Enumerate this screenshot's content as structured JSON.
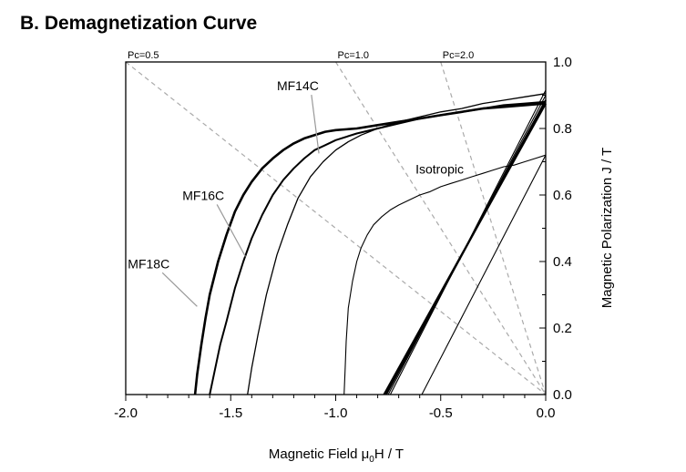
{
  "chart_data": {
    "type": "line",
    "title": "B. Demagnetization Curve",
    "xlabel_main": "Magnetic Field μ",
    "xlabel_sub": "0",
    "xlabel_tail": "H / T",
    "ylabel": "Magnetic Polarization J / T",
    "xlim": [
      -2.0,
      0.0
    ],
    "ylim": [
      0.0,
      1.0
    ],
    "x_ticks": [
      -2.0,
      -1.5,
      -1.0,
      -0.5,
      0.0
    ],
    "x_tick_labels": [
      "-2.0",
      "-1.5",
      "-1.0",
      "-0.5",
      "0.0"
    ],
    "y_ticks": [
      0.0,
      0.2,
      0.4,
      0.6,
      0.8,
      1.0
    ],
    "y_tick_labels": [
      "0.0",
      "0.2",
      "0.4",
      "0.6",
      "0.8",
      "1.0"
    ],
    "grid": false,
    "load_lines": [
      {
        "label": "Pc=0.5",
        "slope_ratio": 0.5,
        "label_x": -2.0
      },
      {
        "label": "Pc=1.0",
        "slope_ratio": 1.0,
        "label_x": -1.0
      },
      {
        "label": "Pc=2.0",
        "slope_ratio": 2.0,
        "label_x": -0.5
      }
    ],
    "series": [
      {
        "name": "MF18C",
        "label_x": -1.99,
        "label_y": 0.38,
        "leader_to_x": -1.66,
        "leader_to_y": 0.265,
        "x": [
          -1.67,
          -1.66,
          -1.64,
          -1.62,
          -1.6,
          -1.56,
          -1.52,
          -1.48,
          -1.44,
          -1.4,
          -1.35,
          -1.3,
          -1.25,
          -1.2,
          -1.15,
          -1.1,
          -1.05,
          -1.0,
          -0.9,
          -0.8,
          -0.7,
          -0.6,
          -0.5,
          -0.4,
          -0.3,
          -0.2,
          -0.1,
          0.0
        ],
        "y": [
          0.0,
          0.06,
          0.15,
          0.23,
          0.3,
          0.4,
          0.48,
          0.55,
          0.6,
          0.64,
          0.68,
          0.71,
          0.735,
          0.755,
          0.77,
          0.78,
          0.79,
          0.795,
          0.8,
          0.81,
          0.82,
          0.83,
          0.84,
          0.85,
          0.86,
          0.865,
          0.87,
          0.875
        ]
      },
      {
        "name": "MF16C",
        "label_x": -1.73,
        "label_y": 0.585,
        "leader_to_x": -1.43,
        "leader_to_y": 0.415,
        "x": [
          -1.6,
          -1.58,
          -1.55,
          -1.52,
          -1.48,
          -1.44,
          -1.4,
          -1.35,
          -1.3,
          -1.25,
          -1.2,
          -1.15,
          -1.1,
          -1.05,
          -1.0,
          -0.9,
          -0.8,
          -0.7,
          -0.6,
          -0.5,
          -0.4,
          -0.3,
          -0.2,
          -0.1,
          0.0
        ],
        "y": [
          0.0,
          0.06,
          0.15,
          0.22,
          0.32,
          0.4,
          0.47,
          0.54,
          0.6,
          0.645,
          0.68,
          0.71,
          0.735,
          0.75,
          0.765,
          0.785,
          0.8,
          0.815,
          0.83,
          0.84,
          0.85,
          0.86,
          0.87,
          0.875,
          0.88
        ]
      },
      {
        "name": "MF14C",
        "label_x": -1.28,
        "label_y": 0.915,
        "leader_to_x": -1.08,
        "leader_to_y": 0.725,
        "x": [
          -1.42,
          -1.4,
          -1.37,
          -1.33,
          -1.28,
          -1.23,
          -1.18,
          -1.12,
          -1.06,
          -1.0,
          -0.94,
          -0.88,
          -0.8,
          -0.7,
          -0.6,
          -0.5,
          -0.4,
          -0.3,
          -0.2,
          -0.1,
          0.0
        ],
        "y": [
          0.0,
          0.08,
          0.18,
          0.3,
          0.42,
          0.51,
          0.59,
          0.655,
          0.7,
          0.735,
          0.76,
          0.78,
          0.8,
          0.82,
          0.835,
          0.85,
          0.86,
          0.875,
          0.885,
          0.895,
          0.905
        ]
      },
      {
        "name": "Isotropic",
        "label_x": -0.62,
        "label_y": 0.665,
        "leader_to_x": null,
        "leader_to_y": null,
        "x": [
          -0.96,
          -0.955,
          -0.95,
          -0.94,
          -0.92,
          -0.9,
          -0.88,
          -0.85,
          -0.82,
          -0.78,
          -0.74,
          -0.7,
          -0.65,
          -0.6,
          -0.55,
          -0.5,
          -0.45,
          -0.4,
          -0.35,
          -0.3,
          -0.25,
          -0.2,
          -0.15,
          -0.1,
          -0.05,
          0.0
        ],
        "y": [
          0.0,
          0.08,
          0.16,
          0.26,
          0.34,
          0.4,
          0.44,
          0.48,
          0.51,
          0.535,
          0.555,
          0.57,
          0.585,
          0.6,
          0.61,
          0.625,
          0.635,
          0.645,
          0.655,
          0.665,
          0.675,
          0.685,
          0.69,
          0.7,
          0.71,
          0.72
        ]
      }
    ],
    "recoil_lines": [
      {
        "x": [
          -0.77,
          0.0
        ],
        "y": [
          0.0,
          0.875
        ],
        "weight": "heavy"
      },
      {
        "x": [
          -0.76,
          0.0
        ],
        "y": [
          0.0,
          0.885
        ],
        "weight": "heavy"
      },
      {
        "x": [
          -0.75,
          0.0
        ],
        "y": [
          0.0,
          0.9
        ],
        "weight": "thin"
      },
      {
        "x": [
          -0.74,
          0.0
        ],
        "y": [
          0.0,
          0.915
        ],
        "weight": "thin"
      },
      {
        "x": [
          -0.59,
          0.0
        ],
        "y": [
          0.0,
          0.72
        ],
        "weight": "thin"
      }
    ]
  }
}
